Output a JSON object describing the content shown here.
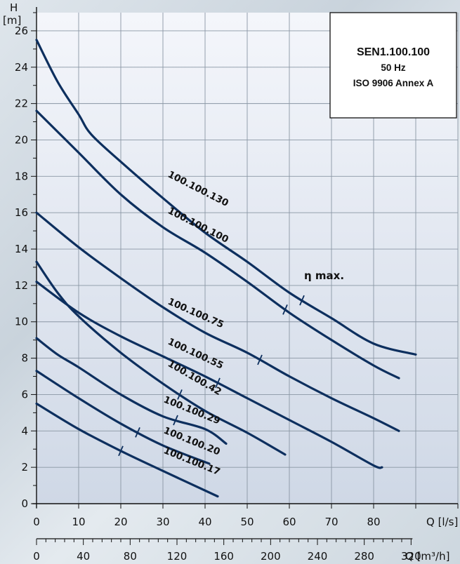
{
  "chart_data": {
    "type": "line",
    "y_axis": {
      "label_line1": "H",
      "label_line2": "[m]",
      "min": 0,
      "max": 27,
      "ticks": [
        0,
        2,
        4,
        6,
        8,
        10,
        12,
        14,
        16,
        18,
        20,
        22,
        24,
        26
      ]
    },
    "x_axis": {
      "label": "Q [l/s]",
      "min": 0,
      "max": 100,
      "ticks": [
        0,
        10,
        20,
        30,
        40,
        50,
        60,
        70,
        80
      ]
    },
    "x2_axis": {
      "label": "Q [m³/h]",
      "ticks": [
        0,
        40,
        80,
        120,
        160,
        200,
        240,
        280,
        320
      ]
    },
    "grid": true,
    "info_box": {
      "title": "SEN1.100.100",
      "line2": "50 Hz",
      "line3": "ISO 9906 Annex A"
    },
    "annotation": "η max.",
    "series": [
      {
        "name": "100.100.130",
        "points": [
          [
            0,
            25.5
          ],
          [
            5,
            23.2
          ],
          [
            10,
            21.4
          ],
          [
            13,
            20.3
          ],
          [
            20,
            18.8
          ],
          [
            30,
            16.8
          ],
          [
            40,
            14.9
          ],
          [
            50,
            13.3
          ],
          [
            60,
            11.6
          ],
          [
            70,
            10.2
          ],
          [
            80,
            8.8
          ],
          [
            90,
            8.2
          ]
        ],
        "eta_max": 63,
        "label_at": [
          31,
          18.0
        ],
        "label_angle": 27
      },
      {
        "name": "100.100.100",
        "points": [
          [
            0,
            21.6
          ],
          [
            10,
            19.3
          ],
          [
            20,
            17.0
          ],
          [
            30,
            15.2
          ],
          [
            40,
            13.8
          ],
          [
            50,
            12.2
          ],
          [
            60,
            10.5
          ],
          [
            70,
            9.0
          ],
          [
            80,
            7.6
          ],
          [
            86,
            6.9
          ]
        ],
        "eta_max": 59,
        "label_at": [
          31,
          16.0
        ],
        "label_angle": 27
      },
      {
        "name": "100.100.75",
        "points": [
          [
            0,
            16.0
          ],
          [
            10,
            14.1
          ],
          [
            20,
            12.4
          ],
          [
            30,
            10.8
          ],
          [
            40,
            9.4
          ],
          [
            50,
            8.3
          ],
          [
            60,
            7.0
          ],
          [
            70,
            5.8
          ],
          [
            80,
            4.7
          ],
          [
            86,
            4.0
          ]
        ],
        "eta_max": 53,
        "label_at": [
          31,
          11.0
        ],
        "label_angle": 24
      },
      {
        "name": "100.100.55",
        "points": [
          [
            0,
            12.2
          ],
          [
            10,
            10.5
          ],
          [
            20,
            9.2
          ],
          [
            30,
            8.1
          ],
          [
            40,
            7.0
          ],
          [
            50,
            5.8
          ],
          [
            60,
            4.6
          ],
          [
            70,
            3.4
          ],
          [
            80,
            2.1
          ],
          [
            82,
            2.0
          ]
        ],
        "eta_max": 43,
        "label_at": [
          31,
          8.8
        ],
        "label_angle": 25
      },
      {
        "name": "100.100.42",
        "points": [
          [
            0,
            13.3
          ],
          [
            5,
            11.6
          ],
          [
            10,
            10.3
          ],
          [
            20,
            8.3
          ],
          [
            30,
            6.6
          ],
          [
            40,
            5.1
          ],
          [
            50,
            3.9
          ],
          [
            59,
            2.7
          ]
        ],
        "eta_max": 34,
        "label_at": [
          31,
          7.6
        ],
        "label_angle": 30
      },
      {
        "name": "100.100.29",
        "points": [
          [
            0,
            9.1
          ],
          [
            5,
            8.2
          ],
          [
            10,
            7.5
          ],
          [
            20,
            6.0
          ],
          [
            30,
            4.8
          ],
          [
            40,
            4.1
          ],
          [
            45,
            3.3
          ]
        ],
        "eta_max": 33,
        "label_at": [
          30,
          5.6
        ],
        "label_angle": 22
      },
      {
        "name": "100.100.20",
        "points": [
          [
            0,
            7.3
          ],
          [
            10,
            5.8
          ],
          [
            20,
            4.4
          ],
          [
            30,
            3.2
          ],
          [
            41,
            2.2
          ]
        ],
        "eta_max": 24,
        "label_at": [
          30,
          3.9
        ],
        "label_angle": 22
      },
      {
        "name": "100.100.17",
        "points": [
          [
            0,
            5.5
          ],
          [
            10,
            4.1
          ],
          [
            20,
            2.9
          ],
          [
            30,
            1.8
          ],
          [
            43,
            0.4
          ]
        ],
        "eta_max": 20,
        "label_at": [
          30,
          2.8
        ],
        "label_angle": 22
      }
    ]
  }
}
